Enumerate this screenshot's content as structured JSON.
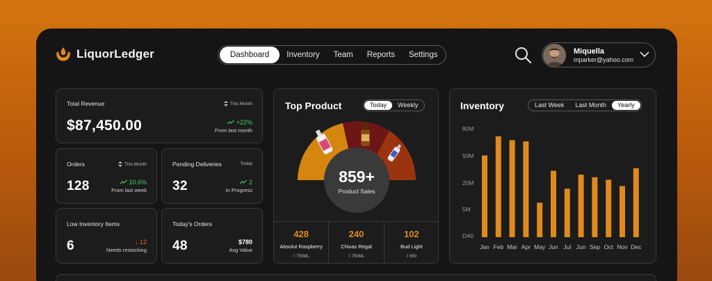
{
  "app": {
    "name": "LiquorLedger"
  },
  "nav": {
    "items": [
      "Dashboard",
      "Inventory",
      "Team",
      "Reports",
      "Settings"
    ],
    "active": "Dashboard"
  },
  "user": {
    "name": "Miquella",
    "email": "mparker@yahoo.com"
  },
  "cards": {
    "revenue": {
      "label": "Total Revenue",
      "period": "This Month",
      "value": "$87,450.00",
      "delta": "+22%",
      "delta_sub": "From last month"
    },
    "orders": {
      "label": "Orders",
      "period": "This Month",
      "value": "128",
      "delta": "10.6%",
      "delta_sub": "From last week"
    },
    "pending": {
      "label": "Pending Deliveries",
      "period": "Today",
      "value": "32",
      "delta": "2",
      "delta_sub": "In Progress"
    },
    "low_inventory": {
      "label": "Low Inventory Items",
      "value": "6",
      "delta": "12",
      "delta_sub": "Needs  restocking"
    },
    "todays_orders": {
      "label": "Today's Orders",
      "value": "48",
      "avg": "$780",
      "avg_sub": "Avg Value"
    }
  },
  "top_product": {
    "title": "Top Product",
    "tabs": [
      "Today",
      "Weekly"
    ],
    "active_tab": "Today",
    "center_value": "859+",
    "center_label": "Product Sales",
    "products": [
      {
        "count": "428",
        "name": "Absolut Raspberry",
        "volume": "750ML"
      },
      {
        "count": "240",
        "name": "Chivas Regal",
        "volume": "750ML"
      },
      {
        "count": "102",
        "name": "Bud Light",
        "volume": "650"
      }
    ],
    "colors": {
      "seg1": "#d4860f",
      "seg2": "#7a1a1a",
      "seg3": "#a0360f"
    }
  },
  "inventory": {
    "title": "Inventory",
    "tabs": [
      "Last Week",
      "Last Month",
      "Yearly"
    ],
    "active_tab": "Yearly"
  },
  "chart_data": {
    "type": "bar",
    "categories": [
      "Jan",
      "Feb",
      "Mar",
      "Apr",
      "May",
      "Jun",
      "Jul",
      "Jun",
      "Sep",
      "Oct",
      "Nov",
      "Dec"
    ],
    "values": [
      64,
      79,
      76,
      75,
      27,
      52,
      38,
      49,
      47,
      45,
      40,
      54
    ],
    "yticks": [
      "80M",
      "50M",
      "20M",
      "5M",
      "DA0"
    ],
    "bar_color": "#e08a1e"
  }
}
